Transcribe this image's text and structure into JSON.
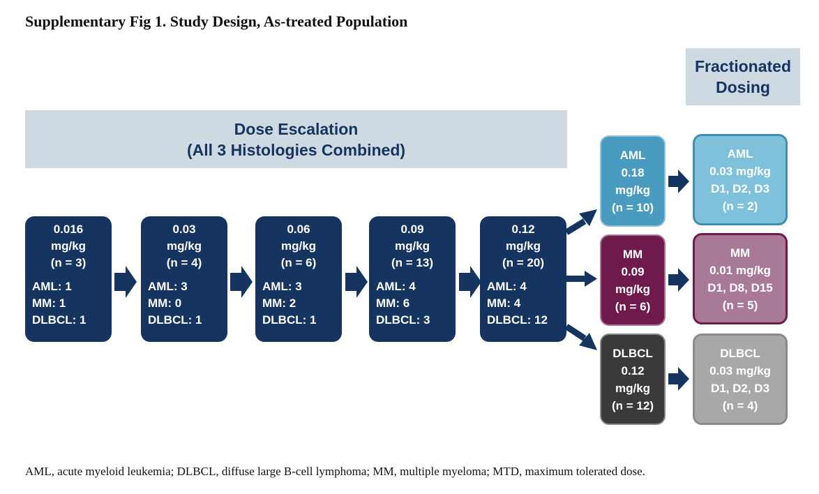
{
  "title": "Supplementary Fig 1. Study Design, As-treated Population",
  "dose_escalation": {
    "line1": "Dose Escalation",
    "line2": "(All 3 Histologies Combined)",
    "cohorts": [
      {
        "dose": "0.016",
        "unit": "mg/kg",
        "n": "(n = 3)",
        "aml": "AML: 1",
        "mm": "MM: 1",
        "dlbcl": "DLBCL: 1"
      },
      {
        "dose": "0.03",
        "unit": "mg/kg",
        "n": "(n = 4)",
        "aml": "AML: 3",
        "mm": "MM: 0",
        "dlbcl": "DLBCL: 1"
      },
      {
        "dose": "0.06",
        "unit": "mg/kg",
        "n": "(n = 6)",
        "aml": "AML: 3",
        "mm": "MM: 2",
        "dlbcl": "DLBCL: 1"
      },
      {
        "dose": "0.09",
        "unit": "mg/kg",
        "n": "(n = 13)",
        "aml": "AML: 4",
        "mm": "MM: 6",
        "dlbcl": "DLBCL: 3"
      },
      {
        "dose": "0.12",
        "unit": "mg/kg",
        "n": "(n = 20)",
        "aml": "AML: 4",
        "mm": "MM: 4",
        "dlbcl": "DLBCL: 12"
      }
    ]
  },
  "expansion": [
    {
      "name": "AML",
      "dose": "0.18",
      "unit": "mg/kg",
      "n": "(n = 10)",
      "color": "#4a9bc0"
    },
    {
      "name": "MM",
      "dose": "0.09",
      "unit": "mg/kg",
      "n": "(n = 6)",
      "color": "#6f1a4c"
    },
    {
      "name": "DLBCL",
      "dose": "0.12",
      "unit": "mg/kg",
      "n": "(n = 12)",
      "color": "#3a3a3a"
    }
  ],
  "fractionated": {
    "line1": "Fractionated",
    "line2": "Dosing",
    "arms": [
      {
        "name": "AML",
        "dose": "0.03 mg/kg",
        "days": "D1, D2, D3",
        "n": "(n = 2)",
        "color": "#7fc0da",
        "border": "#3f8fb5"
      },
      {
        "name": "MM",
        "dose": "0.01 mg/kg",
        "days": "D1, D8, D15",
        "n": "(n = 5)",
        "color": "#a97a98",
        "border": "#6f1a4c"
      },
      {
        "name": "DLBCL",
        "dose": "0.03 mg/kg",
        "days": "D1, D2, D3",
        "n": "(n = 4)",
        "color": "#a8a8a8",
        "border": "#8a8a8a"
      }
    ]
  },
  "footnote": "AML, acute myeloid leukemia; DLBCL, diffuse large B-cell lymphoma; MM, multiple myeloma; MTD, maximum tolerated dose.",
  "colors": {
    "navy": "#15345f",
    "banner": "#ced9e2"
  }
}
